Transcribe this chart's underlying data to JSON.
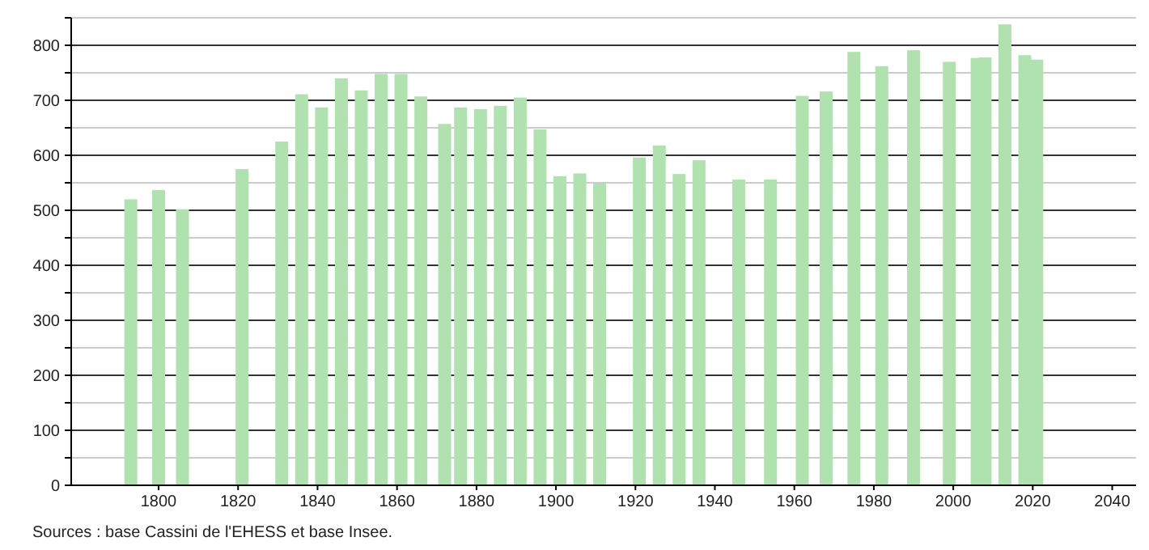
{
  "chart_data": {
    "type": "bar",
    "x": [
      1793,
      1800,
      1806,
      1821,
      1831,
      1836,
      1841,
      1846,
      1851,
      1856,
      1861,
      1866,
      1872,
      1876,
      1881,
      1886,
      1891,
      1896,
      1901,
      1906,
      1911,
      1921,
      1926,
      1931,
      1936,
      1946,
      1954,
      1962,
      1968,
      1975,
      1982,
      1990,
      1999,
      2006,
      2008,
      2013,
      2018,
      2021
    ],
    "values": [
      520,
      537,
      502,
      575,
      625,
      711,
      687,
      740,
      718,
      748,
      748,
      707,
      657,
      687,
      684,
      690,
      705,
      647,
      562,
      567,
      549,
      596,
      618,
      566,
      591,
      556,
      556,
      708,
      716,
      788,
      762,
      791,
      770,
      777,
      778,
      838,
      782,
      774
    ],
    "color": "#b0e2b0",
    "xlim": [
      1778,
      2046
    ],
    "xticks": [
      1800,
      1820,
      1840,
      1860,
      1880,
      1900,
      1920,
      1940,
      1960,
      1980,
      2000,
      2020,
      2040
    ],
    "ylim": [
      0,
      850
    ],
    "yticks": [
      0,
      {
        "value": 50,
        "label": null
      },
      100,
      {
        "value": 150,
        "label": null
      },
      200,
      {
        "value": 250,
        "label": null
      },
      300,
      {
        "value": 350,
        "label": null
      },
      400,
      {
        "value": 450,
        "label": null
      },
      500,
      {
        "value": 550,
        "label": null
      },
      600,
      {
        "value": 650,
        "label": null
      },
      700,
      {
        "value": 750,
        "label": null
      },
      800,
      {
        "value": 850,
        "label": null
      }
    ],
    "grid": "y",
    "annotations": [
      "Sources : base Cassini de l'EHESS et base Insee."
    ]
  }
}
